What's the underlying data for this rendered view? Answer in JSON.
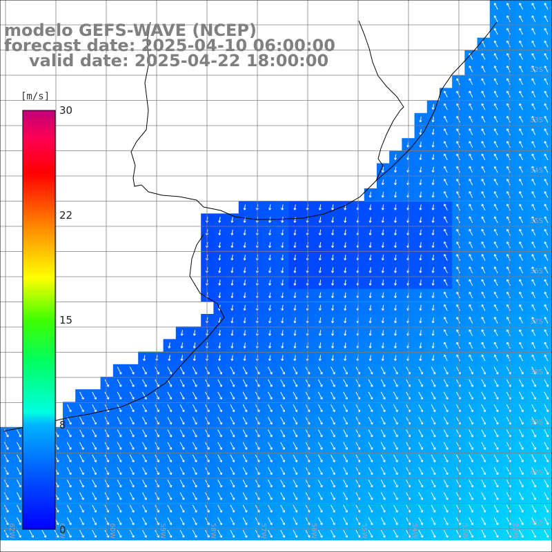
{
  "title": {
    "model": "modelo GEFS-WAVE (NCEP)",
    "forecast": "forecast date: 2025-04-10 06:00:00",
    "valid": "valid date: 2025-04-22 18:00:00"
  },
  "colorbar": {
    "unit": "[m/s]",
    "ticks": [
      "30",
      "22",
      "15",
      "8",
      "0"
    ],
    "colors": [
      "#0000ff",
      "#0060ff",
      "#00c8ff",
      "#00ffc0",
      "#00ff00",
      "#ffff00",
      "#ff8000",
      "#ff0000",
      "#ff0060",
      "#c00070"
    ]
  },
  "axis_labels": {
    "lat": [
      "32S",
      "33S",
      "34S",
      "35S",
      "36S",
      "37S",
      "38S",
      "39S",
      "40S",
      "41S"
    ],
    "lon": [
      "62W",
      "61W",
      "60W",
      "59W",
      "58W",
      "57W",
      "56W",
      "55W",
      "54W",
      "53W",
      "52W"
    ]
  },
  "colors": {
    "land": "#ffffff",
    "coast": "#000000",
    "grid": "#808080",
    "arrow": "#ffffff"
  }
}
